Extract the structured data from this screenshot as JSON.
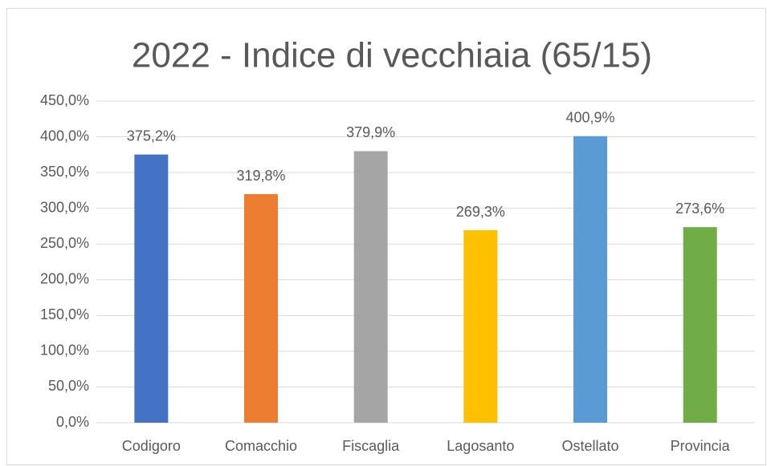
{
  "chart_data": {
    "type": "bar",
    "title": "2022 - Indice di vecchiaia (65/15)",
    "categories": [
      "Codigoro",
      "Comacchio",
      "Fiscaglia",
      "Lagosanto",
      "Ostellato",
      "Provincia"
    ],
    "values": [
      375.2,
      319.8,
      379.9,
      269.3,
      400.9,
      273.6
    ],
    "value_labels": [
      "375,2%",
      "319,8%",
      "379,9%",
      "269,3%",
      "400,9%",
      "273,6%"
    ],
    "colors": [
      "#4472c4",
      "#ed7d31",
      "#a5a5a5",
      "#ffc000",
      "#5b9bd5",
      "#70ad47"
    ],
    "ylim": [
      0,
      450
    ],
    "yticks": [
      {
        "value": 0,
        "label": "0,0%"
      },
      {
        "value": 50,
        "label": "50,0%"
      },
      {
        "value": 100,
        "label": "100,0%"
      },
      {
        "value": 150,
        "label": "150,0%"
      },
      {
        "value": 200,
        "label": "200,0%"
      },
      {
        "value": 250,
        "label": "250,0%"
      },
      {
        "value": 300,
        "label": "300,0%"
      },
      {
        "value": 350,
        "label": "350,0%"
      },
      {
        "value": 400,
        "label": "400,0%"
      },
      {
        "value": 450,
        "label": "450,0%"
      }
    ],
    "grid": true
  }
}
